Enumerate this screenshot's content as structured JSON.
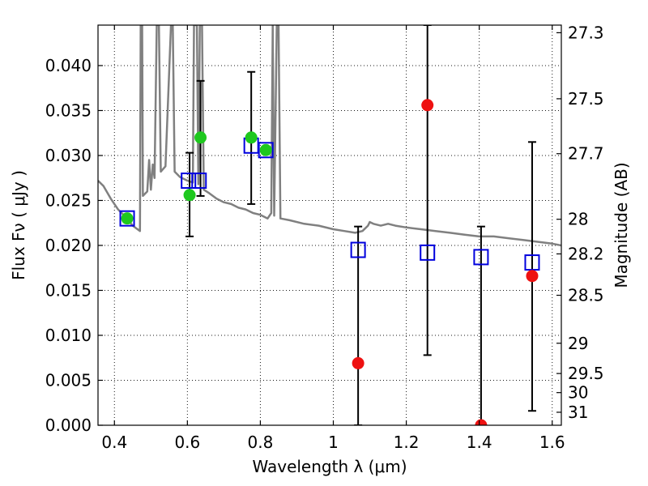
{
  "chart_data": {
    "type": "scatter",
    "title": "",
    "xlabel": "Wavelength  λ (μm)",
    "ylabel": "Flux  Fν  ( μJy )",
    "y2label": "Magnitude (AB)",
    "xlim": [
      0.355,
      1.625
    ],
    "ylim": [
      0.0,
      0.0445
    ],
    "grid": true,
    "x_ticks": [
      0.4,
      0.6,
      0.8,
      1.0,
      1.2,
      1.4,
      1.6
    ],
    "x_tick_labels": [
      "0.4",
      "0.6",
      "0.8",
      "1",
      "1.2",
      "1.4",
      "1.6"
    ],
    "y_ticks": [
      0.0,
      0.005,
      0.01,
      0.015,
      0.02,
      0.025,
      0.03,
      0.035,
      0.04
    ],
    "y_tick_labels": [
      "0.000",
      "0.005",
      "0.010",
      "0.015",
      "0.020",
      "0.025",
      "0.030",
      "0.035",
      "0.040"
    ],
    "y2_ticks": [
      {
        "mag": 27.3,
        "label": "27.3"
      },
      {
        "mag": 27.5,
        "label": "27.5"
      },
      {
        "mag": 27.7,
        "label": "27.7"
      },
      {
        "mag": 28.0,
        "label": "28"
      },
      {
        "mag": 28.2,
        "label": "28.2"
      },
      {
        "mag": 28.5,
        "label": "28.5"
      },
      {
        "mag": 29.0,
        "label": "29"
      },
      {
        "mag": 29.5,
        "label": "29.5"
      },
      {
        "mag": 30.0,
        "label": "30"
      },
      {
        "mag": 31.0,
        "label": "31"
      }
    ],
    "colors": {
      "template": "#808080",
      "model": "#0000dd",
      "detection": "#1ec81e",
      "photometry": "#ee1111",
      "errorbar": "#000000"
    },
    "series": [
      {
        "kind": "template-spectrum",
        "points": [
          [
            0.355,
            0.0272
          ],
          [
            0.37,
            0.0266
          ],
          [
            0.39,
            0.0252
          ],
          [
            0.41,
            0.024
          ],
          [
            0.43,
            0.0232
          ],
          [
            0.45,
            0.0222
          ],
          [
            0.47,
            0.0216
          ],
          [
            0.472,
            0.0445
          ],
          [
            0.476,
            0.0445
          ],
          [
            0.478,
            0.0255
          ],
          [
            0.49,
            0.026
          ],
          [
            0.495,
            0.0295
          ],
          [
            0.5,
            0.0262
          ],
          [
            0.505,
            0.029
          ],
          [
            0.51,
            0.0275
          ],
          [
            0.516,
            0.0445
          ],
          [
            0.522,
            0.0445
          ],
          [
            0.527,
            0.0282
          ],
          [
            0.54,
            0.0288
          ],
          [
            0.555,
            0.0445
          ],
          [
            0.56,
            0.0445
          ],
          [
            0.565,
            0.0282
          ],
          [
            0.58,
            0.0276
          ],
          [
            0.6,
            0.0272
          ],
          [
            0.615,
            0.027
          ],
          [
            0.618,
            0.0445
          ],
          [
            0.626,
            0.0445
          ],
          [
            0.63,
            0.0268
          ],
          [
            0.634,
            0.0445
          ],
          [
            0.64,
            0.0445
          ],
          [
            0.645,
            0.0262
          ],
          [
            0.66,
            0.0258
          ],
          [
            0.68,
            0.0252
          ],
          [
            0.7,
            0.0248
          ],
          [
            0.72,
            0.0246
          ],
          [
            0.74,
            0.0242
          ],
          [
            0.76,
            0.024
          ],
          [
            0.78,
            0.0236
          ],
          [
            0.8,
            0.0234
          ],
          [
            0.82,
            0.023
          ],
          [
            0.83,
            0.0236
          ],
          [
            0.834,
            0.0445
          ],
          [
            0.838,
            0.0233
          ],
          [
            0.845,
            0.0445
          ],
          [
            0.85,
            0.0445
          ],
          [
            0.855,
            0.023
          ],
          [
            0.88,
            0.0228
          ],
          [
            0.92,
            0.0224
          ],
          [
            0.96,
            0.0222
          ],
          [
            1.0,
            0.0218
          ],
          [
            1.03,
            0.0216
          ],
          [
            1.06,
            0.0214
          ],
          [
            1.08,
            0.0216
          ],
          [
            1.095,
            0.0222
          ],
          [
            1.1,
            0.0226
          ],
          [
            1.11,
            0.0224
          ],
          [
            1.13,
            0.0222
          ],
          [
            1.15,
            0.0224
          ],
          [
            1.17,
            0.0222
          ],
          [
            1.2,
            0.022
          ],
          [
            1.24,
            0.0218
          ],
          [
            1.28,
            0.0216
          ],
          [
            1.32,
            0.0214
          ],
          [
            1.36,
            0.0212
          ],
          [
            1.4,
            0.021
          ],
          [
            1.44,
            0.021
          ],
          [
            1.48,
            0.0208
          ],
          [
            1.52,
            0.0206
          ],
          [
            1.56,
            0.0204
          ],
          [
            1.6,
            0.0202
          ],
          [
            1.625,
            0.02
          ]
        ]
      },
      {
        "kind": "model-bandpass",
        "points": [
          [
            0.435,
            0.023
          ],
          [
            0.603,
            0.0272
          ],
          [
            0.632,
            0.0272
          ],
          [
            0.775,
            0.0311
          ],
          [
            0.815,
            0.0306
          ],
          [
            1.068,
            0.0195
          ],
          [
            1.258,
            0.0192
          ],
          [
            1.405,
            0.0187
          ],
          [
            1.545,
            0.0181
          ]
        ]
      },
      {
        "kind": "observed-detection",
        "points": [
          {
            "x": 0.435,
            "y": 0.023
          },
          {
            "x": 0.606,
            "y": 0.0256,
            "err": [
              0.021,
              0.0303
            ]
          },
          {
            "x": 0.636,
            "y": 0.032,
            "err": [
              0.0255,
              0.0383
            ]
          },
          {
            "x": 0.775,
            "y": 0.032,
            "err": [
              0.0246,
              0.0393
            ]
          },
          {
            "x": 0.815,
            "y": 0.0306
          }
        ]
      },
      {
        "kind": "observed-photometry",
        "points": [
          {
            "x": 1.068,
            "y": 0.0069,
            "err": [
              0.0,
              0.0221
            ]
          },
          {
            "x": 1.258,
            "y": 0.0356,
            "err": [
              0.0078,
              0.0445
            ]
          },
          {
            "x": 1.405,
            "y": 0.0,
            "err": [
              0.0,
              0.0221
            ]
          },
          {
            "x": 1.545,
            "y": 0.0166,
            "err": [
              0.0016,
              0.0315
            ]
          }
        ]
      }
    ]
  }
}
